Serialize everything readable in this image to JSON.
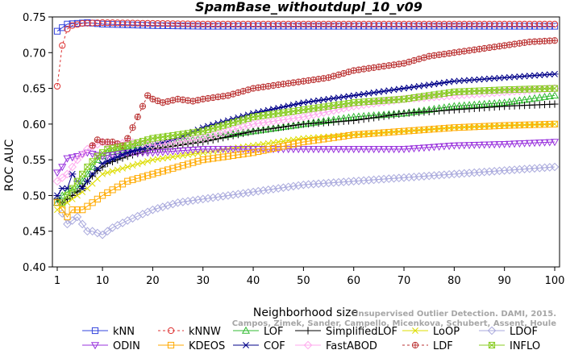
{
  "chart_data": {
    "type": "line",
    "title": "SpamBase_withoutdupl_10_v09",
    "xlabel": "Neighborhood size",
    "ylabel": "ROC AUC",
    "xlim": [
      1,
      100
    ],
    "ylim": [
      0.4,
      0.75
    ],
    "x_ticks": [
      "1",
      "10",
      "20",
      "30",
      "40",
      "50",
      "60",
      "70",
      "80",
      "90",
      "100"
    ],
    "y_ticks": [
      "0.40",
      "0.45",
      "0.50",
      "0.55",
      "0.60",
      "0.65",
      "0.70",
      "0.75"
    ],
    "grid": false,
    "legend_position": "bottom",
    "watermark": "Unsupervised Outlier Detection. DAMI, 2015. Campos, Zimek, Sander, Campello, Micenkova, Schubert, Assent, Houle",
    "series": [
      {
        "name": "kNN",
        "color": "#3344dd",
        "marker": "square",
        "dashed": false,
        "points": [
          [
            1,
            0.73
          ],
          [
            3,
            0.74
          ],
          [
            5,
            0.741
          ],
          [
            7,
            0.742
          ],
          [
            10,
            0.74
          ],
          [
            15,
            0.739
          ],
          [
            20,
            0.738
          ],
          [
            30,
            0.737
          ],
          [
            40,
            0.737
          ],
          [
            50,
            0.737
          ],
          [
            60,
            0.737
          ],
          [
            70,
            0.737
          ],
          [
            80,
            0.737
          ],
          [
            90,
            0.737
          ],
          [
            100,
            0.737
          ]
        ]
      },
      {
        "name": "kNNW",
        "color": "#dd3333",
        "marker": "circle",
        "dashed": true,
        "points": [
          [
            1,
            0.653
          ],
          [
            2,
            0.71
          ],
          [
            3,
            0.733
          ],
          [
            4,
            0.738
          ],
          [
            6,
            0.741
          ],
          [
            10,
            0.742
          ],
          [
            20,
            0.741
          ],
          [
            30,
            0.74
          ],
          [
            40,
            0.74
          ],
          [
            50,
            0.74
          ],
          [
            60,
            0.74
          ],
          [
            70,
            0.74
          ],
          [
            80,
            0.74
          ],
          [
            90,
            0.74
          ],
          [
            100,
            0.74
          ]
        ]
      },
      {
        "name": "LOF",
        "color": "#33bb33",
        "marker": "triangle-up",
        "dashed": false,
        "points": [
          [
            1,
            0.49
          ],
          [
            2,
            0.5
          ],
          [
            3,
            0.505
          ],
          [
            5,
            0.51
          ],
          [
            7,
            0.53
          ],
          [
            9,
            0.55
          ],
          [
            11,
            0.56
          ],
          [
            15,
            0.565
          ],
          [
            20,
            0.57
          ],
          [
            25,
            0.575
          ],
          [
            30,
            0.58
          ],
          [
            40,
            0.59
          ],
          [
            50,
            0.6
          ],
          [
            60,
            0.61
          ],
          [
            70,
            0.615
          ],
          [
            80,
            0.625
          ],
          [
            90,
            0.63
          ],
          [
            100,
            0.64
          ]
        ]
      },
      {
        "name": "SimplifiedLOF",
        "color": "#000000",
        "marker": "plus",
        "dashed": false,
        "points": [
          [
            1,
            0.495
          ],
          [
            2,
            0.49
          ],
          [
            3,
            0.495
          ],
          [
            5,
            0.505
          ],
          [
            7,
            0.52
          ],
          [
            9,
            0.535
          ],
          [
            11,
            0.545
          ],
          [
            15,
            0.555
          ],
          [
            20,
            0.565
          ],
          [
            25,
            0.57
          ],
          [
            30,
            0.575
          ],
          [
            40,
            0.59
          ],
          [
            50,
            0.6
          ],
          [
            60,
            0.605
          ],
          [
            70,
            0.615
          ],
          [
            80,
            0.62
          ],
          [
            90,
            0.625
          ],
          [
            100,
            0.628
          ]
        ]
      },
      {
        "name": "LoOP",
        "color": "#dddd00",
        "marker": "x",
        "dashed": false,
        "points": [
          [
            1,
            0.48
          ],
          [
            3,
            0.49
          ],
          [
            5,
            0.5
          ],
          [
            7,
            0.51
          ],
          [
            10,
            0.53
          ],
          [
            15,
            0.54
          ],
          [
            20,
            0.55
          ],
          [
            30,
            0.56
          ],
          [
            40,
            0.57
          ],
          [
            50,
            0.58
          ],
          [
            60,
            0.585
          ],
          [
            70,
            0.59
          ],
          [
            80,
            0.595
          ],
          [
            90,
            0.598
          ],
          [
            100,
            0.6
          ]
        ]
      },
      {
        "name": "LDOF",
        "color": "#aaaadd",
        "marker": "diamond",
        "dashed": false,
        "points": [
          [
            2,
            0.475
          ],
          [
            3,
            0.46
          ],
          [
            5,
            0.47
          ],
          [
            7,
            0.45
          ],
          [
            8,
            0.45
          ],
          [
            10,
            0.445
          ],
          [
            12,
            0.455
          ],
          [
            15,
            0.465
          ],
          [
            20,
            0.48
          ],
          [
            25,
            0.49
          ],
          [
            30,
            0.495
          ],
          [
            40,
            0.505
          ],
          [
            50,
            0.515
          ],
          [
            60,
            0.52
          ],
          [
            70,
            0.525
          ],
          [
            80,
            0.53
          ],
          [
            90,
            0.535
          ],
          [
            100,
            0.54
          ]
        ]
      },
      {
        "name": "ODIN",
        "color": "#9933dd",
        "marker": "triangle-down",
        "dashed": false,
        "points": [
          [
            1,
            0.532
          ],
          [
            2,
            0.54
          ],
          [
            3,
            0.552
          ],
          [
            5,
            0.555
          ],
          [
            7,
            0.56
          ],
          [
            10,
            0.555
          ],
          [
            15,
            0.56
          ],
          [
            20,
            0.56
          ],
          [
            30,
            0.565
          ],
          [
            40,
            0.565
          ],
          [
            50,
            0.565
          ],
          [
            60,
            0.565
          ],
          [
            70,
            0.565
          ],
          [
            80,
            0.57
          ],
          [
            90,
            0.572
          ],
          [
            100,
            0.575
          ]
        ]
      },
      {
        "name": "KDEOS",
        "color": "#ffaa00",
        "marker": "square",
        "dashed": false,
        "points": [
          [
            1,
            0.49
          ],
          [
            2,
            0.48
          ],
          [
            3,
            0.47
          ],
          [
            4,
            0.48
          ],
          [
            6,
            0.48
          ],
          [
            8,
            0.49
          ],
          [
            10,
            0.5
          ],
          [
            15,
            0.52
          ],
          [
            20,
            0.53
          ],
          [
            25,
            0.54
          ],
          [
            30,
            0.55
          ],
          [
            40,
            0.56
          ],
          [
            50,
            0.575
          ],
          [
            60,
            0.585
          ],
          [
            70,
            0.59
          ],
          [
            80,
            0.595
          ],
          [
            90,
            0.598
          ],
          [
            100,
            0.6
          ]
        ]
      },
      {
        "name": "COF",
        "color": "#000088",
        "marker": "asterisk",
        "dashed": false,
        "points": [
          [
            1,
            0.5
          ],
          [
            2,
            0.51
          ],
          [
            3,
            0.51
          ],
          [
            4,
            0.53
          ],
          [
            6,
            0.51
          ],
          [
            8,
            0.53
          ],
          [
            10,
            0.545
          ],
          [
            15,
            0.56
          ],
          [
            20,
            0.57
          ],
          [
            25,
            0.58
          ],
          [
            30,
            0.595
          ],
          [
            40,
            0.615
          ],
          [
            50,
            0.63
          ],
          [
            60,
            0.64
          ],
          [
            70,
            0.65
          ],
          [
            80,
            0.66
          ],
          [
            90,
            0.665
          ],
          [
            100,
            0.67
          ]
        ]
      },
      {
        "name": "FastABOD",
        "color": "#ffaaee",
        "marker": "diamond",
        "dashed": false,
        "points": [
          [
            1,
            0.52
          ],
          [
            3,
            0.53
          ],
          [
            5,
            0.55
          ],
          [
            7,
            0.565
          ],
          [
            10,
            0.575
          ],
          [
            12,
            0.57
          ],
          [
            15,
            0.575
          ],
          [
            20,
            0.57
          ],
          [
            30,
            0.58
          ],
          [
            40,
            0.6
          ],
          [
            50,
            0.61
          ],
          [
            60,
            0.625
          ],
          [
            70,
            0.635
          ],
          [
            80,
            0.64
          ],
          [
            90,
            0.645
          ],
          [
            100,
            0.65
          ]
        ]
      },
      {
        "name": "LDF",
        "color": "#bb3333",
        "marker": "circle-plus",
        "dashed": true,
        "points": [
          [
            8,
            0.57
          ],
          [
            9,
            0.578
          ],
          [
            10,
            0.575
          ],
          [
            12,
            0.575
          ],
          [
            14,
            0.57
          ],
          [
            15,
            0.58
          ],
          [
            16,
            0.595
          ],
          [
            17,
            0.61
          ],
          [
            18,
            0.625
          ],
          [
            19,
            0.64
          ],
          [
            20,
            0.635
          ],
          [
            22,
            0.63
          ],
          [
            25,
            0.635
          ],
          [
            28,
            0.632
          ],
          [
            30,
            0.635
          ],
          [
            35,
            0.64
          ],
          [
            40,
            0.65
          ],
          [
            45,
            0.655
          ],
          [
            50,
            0.66
          ],
          [
            55,
            0.665
          ],
          [
            60,
            0.675
          ],
          [
            65,
            0.68
          ],
          [
            70,
            0.685
          ],
          [
            75,
            0.695
          ],
          [
            80,
            0.7
          ],
          [
            85,
            0.705
          ],
          [
            90,
            0.71
          ],
          [
            95,
            0.715
          ],
          [
            100,
            0.717
          ]
        ]
      },
      {
        "name": "INFLO",
        "color": "#88cc22",
        "marker": "box-x",
        "dashed": false,
        "points": [
          [
            2,
            0.49
          ],
          [
            3,
            0.5
          ],
          [
            5,
            0.52
          ],
          [
            7,
            0.54
          ],
          [
            9,
            0.555
          ],
          [
            11,
            0.565
          ],
          [
            15,
            0.57
          ],
          [
            20,
            0.58
          ],
          [
            30,
            0.59
          ],
          [
            40,
            0.61
          ],
          [
            50,
            0.62
          ],
          [
            60,
            0.63
          ],
          [
            70,
            0.635
          ],
          [
            80,
            0.645
          ],
          [
            90,
            0.648
          ],
          [
            100,
            0.65
          ]
        ]
      }
    ]
  }
}
